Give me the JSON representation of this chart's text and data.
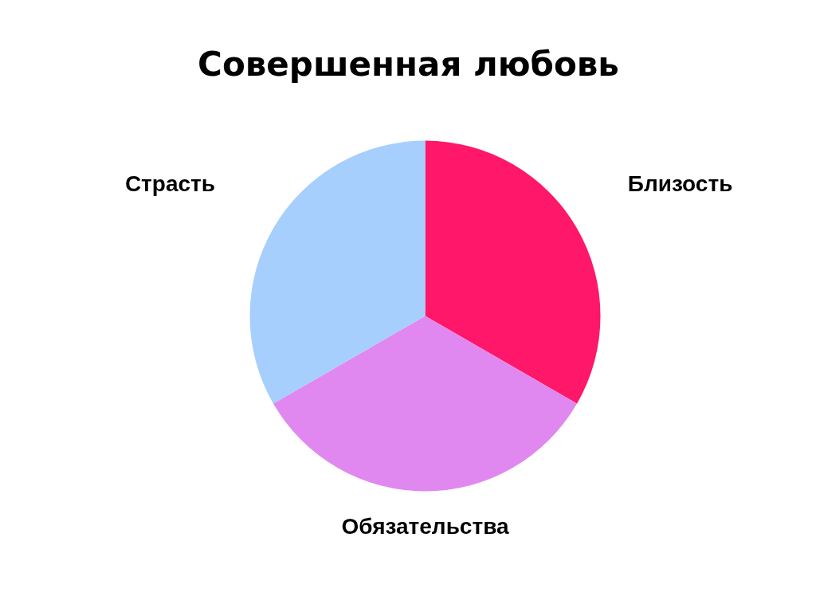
{
  "chart_data": {
    "type": "pie",
    "title": "Совершенная любовь",
    "categories": [
      "Близость",
      "Обязательства",
      "Страсть"
    ],
    "values": [
      33.33,
      33.34,
      33.33
    ],
    "colors": [
      "#ff1769",
      "#e088f0",
      "#a6cffe"
    ]
  }
}
